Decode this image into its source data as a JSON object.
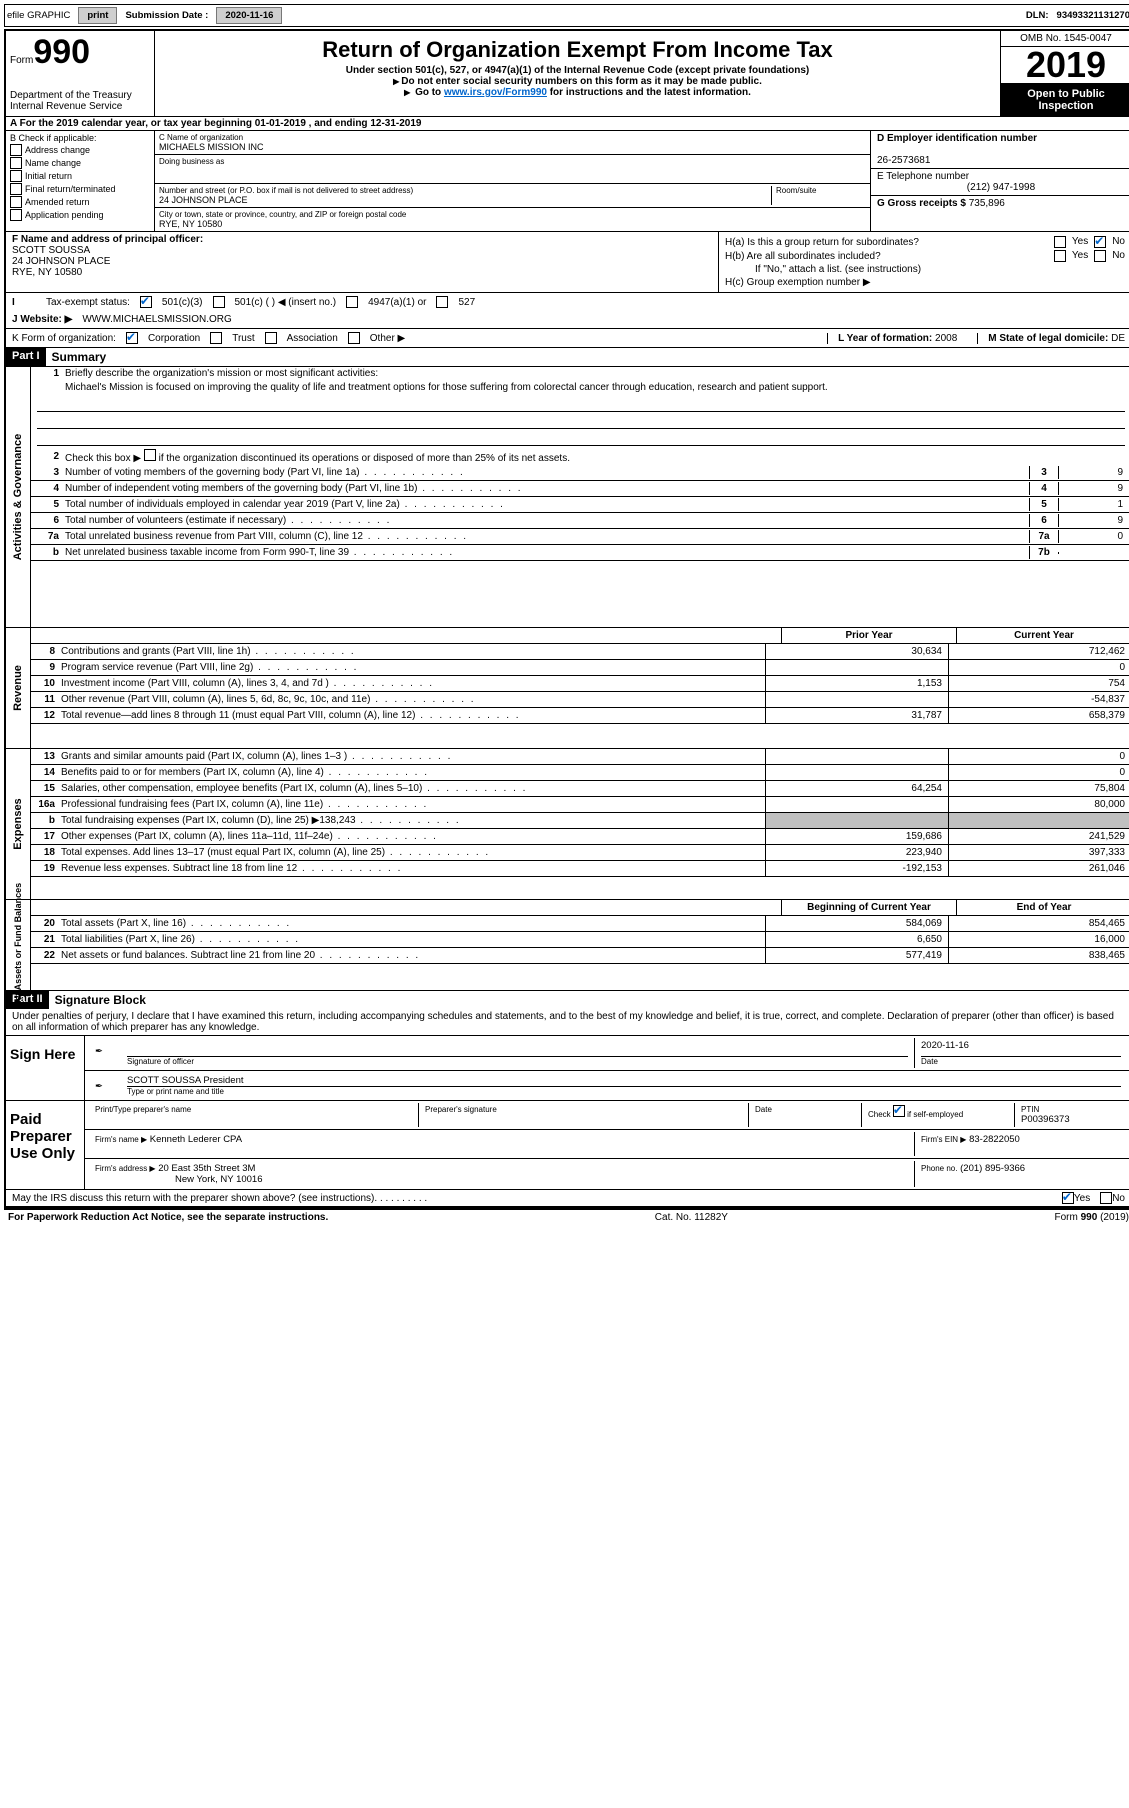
{
  "topbar": {
    "efile": "efile GRAPHIC",
    "print": "print",
    "submission_label": "Submission Date :",
    "submission_date": "2020-11-16",
    "dln_label": "DLN:",
    "dln": "93493321131270"
  },
  "header": {
    "form_word": "Form",
    "form_num": "990",
    "dept1": "Department of the Treasury",
    "dept2": "Internal Revenue Service",
    "title": "Return of Organization Exempt From Income Tax",
    "sub": "Under section 501(c), 527, or 4947(a)(1) of the Internal Revenue Code (except private foundations)",
    "note1": "Do not enter social security numbers on this form as it may be made public.",
    "note2_pre": "Go to ",
    "note2_link": "www.irs.gov/Form990",
    "note2_post": " for instructions and the latest information.",
    "omb": "OMB No. 1545-0047",
    "year": "2019",
    "inspection1": "Open to Public",
    "inspection2": "Inspection"
  },
  "rowA": "A For the 2019 calendar year, or tax year beginning 01-01-2019     , and ending 12-31-2019",
  "colB": {
    "header": "B Check if applicable:",
    "opts": [
      "Address change",
      "Name change",
      "Initial return",
      "Final return/terminated",
      "Amended return",
      "Application pending"
    ]
  },
  "colC": {
    "name_lbl": "C Name of organization",
    "name": "MICHAELS MISSION INC",
    "dba_lbl": "Doing business as",
    "dba": "",
    "addr_lbl": "Number and street (or P.O. box if mail is not delivered to street address)",
    "room_lbl": "Room/suite",
    "addr": "24 JOHNSON PLACE",
    "city_lbl": "City or town, state or province, country, and ZIP or foreign postal code",
    "city": "RYE, NY  10580"
  },
  "colDE": {
    "d_lbl": "D Employer identification number",
    "ein": "26-2573681",
    "e_lbl": "E Telephone number",
    "phone": "(212) 947-1998",
    "g_lbl": "G Gross receipts $",
    "g_val": "735,896"
  },
  "rowF": {
    "lbl": "F Name and address of principal officer:",
    "name": "SCOTT SOUSSA",
    "addr1": "24 JOHNSON PLACE",
    "addr2": "RYE, NY  10580"
  },
  "rowH": {
    "ha": "H(a)  Is this a group return for subordinates?",
    "hb": "H(b)  Are all subordinates included?",
    "hb_note": "If \"No,\" attach a list. (see instructions)",
    "hc": "H(c)  Group exemption number ▶",
    "yes": "Yes",
    "no": "No"
  },
  "rowI": {
    "lbl": "Tax-exempt status:",
    "o1": "501(c)(3)",
    "o2": "501(c) (  ) ◀ (insert no.)",
    "o3": "4947(a)(1) or",
    "o4": "527"
  },
  "rowJ": {
    "lbl": "J   Website: ▶",
    "val": "WWW.MICHAELSMISSION.ORG"
  },
  "rowK": {
    "lbl": "K Form of organization:",
    "o1": "Corporation",
    "o2": "Trust",
    "o3": "Association",
    "o4": "Other ▶",
    "l_lbl": "L Year of formation:",
    "l_val": "2008",
    "m_lbl": "M State of legal domicile:",
    "m_val": "DE"
  },
  "part1": {
    "part": "Part I",
    "title": "Summary",
    "l1_lbl": "Briefly describe the organization's mission or most significant activities:",
    "l1_text": "Michael's Mission is focused on improving the quality of life and treatment options for those suffering from colorectal cancer through education, research and patient support.",
    "l2": "Check this box ▶        if the organization discontinued its operations or disposed of more than 25% of its net assets.",
    "lines_gov": [
      {
        "n": "3",
        "d": "Number of voting members of the governing body (Part VI, line 1a)",
        "box": "3",
        "v": "9"
      },
      {
        "n": "4",
        "d": "Number of independent voting members of the governing body (Part VI, line 1b)",
        "box": "4",
        "v": "9"
      },
      {
        "n": "5",
        "d": "Total number of individuals employed in calendar year 2019 (Part V, line 2a)",
        "box": "5",
        "v": "1"
      },
      {
        "n": "6",
        "d": "Total number of volunteers (estimate if necessary)",
        "box": "6",
        "v": "9"
      },
      {
        "n": "7a",
        "d": "Total unrelated business revenue from Part VIII, column (C), line 12",
        "box": "7a",
        "v": "0"
      },
      {
        "n": "b",
        "d": "Net unrelated business taxable income from Form 990-T, line 39",
        "box": "7b",
        "v": ""
      }
    ],
    "col_prior": "Prior Year",
    "col_current": "Current Year",
    "rev": [
      {
        "n": "8",
        "d": "Contributions and grants (Part VIII, line 1h)",
        "p": "30,634",
        "c": "712,462"
      },
      {
        "n": "9",
        "d": "Program service revenue (Part VIII, line 2g)",
        "p": "",
        "c": "0"
      },
      {
        "n": "10",
        "d": "Investment income (Part VIII, column (A), lines 3, 4, and 7d )",
        "p": "1,153",
        "c": "754"
      },
      {
        "n": "11",
        "d": "Other revenue (Part VIII, column (A), lines 5, 6d, 8c, 9c, 10c, and 11e)",
        "p": "",
        "c": "-54,837"
      },
      {
        "n": "12",
        "d": "Total revenue—add lines 8 through 11 (must equal Part VIII, column (A), line 12)",
        "p": "31,787",
        "c": "658,379"
      }
    ],
    "exp": [
      {
        "n": "13",
        "d": "Grants and similar amounts paid (Part IX, column (A), lines 1–3 )",
        "p": "",
        "c": "0"
      },
      {
        "n": "14",
        "d": "Benefits paid to or for members (Part IX, column (A), line 4)",
        "p": "",
        "c": "0"
      },
      {
        "n": "15",
        "d": "Salaries, other compensation, employee benefits (Part IX, column (A), lines 5–10)",
        "p": "64,254",
        "c": "75,804"
      },
      {
        "n": "16a",
        "d": "Professional fundraising fees (Part IX, column (A), line 11e)",
        "p": "",
        "c": "80,000"
      },
      {
        "n": "b",
        "d": "Total fundraising expenses (Part IX, column (D), line 25) ▶138,243",
        "p": "grey",
        "c": "grey"
      },
      {
        "n": "17",
        "d": "Other expenses (Part IX, column (A), lines 11a–11d, 11f–24e)",
        "p": "159,686",
        "c": "241,529"
      },
      {
        "n": "18",
        "d": "Total expenses. Add lines 13–17 (must equal Part IX, column (A), line 25)",
        "p": "223,940",
        "c": "397,333"
      },
      {
        "n": "19",
        "d": "Revenue less expenses. Subtract line 18 from line 12",
        "p": "-192,153",
        "c": "261,046"
      }
    ],
    "col_begin": "Beginning of Current Year",
    "col_end": "End of Year",
    "net": [
      {
        "n": "20",
        "d": "Total assets (Part X, line 16)",
        "p": "584,069",
        "c": "854,465"
      },
      {
        "n": "21",
        "d": "Total liabilities (Part X, line 26)",
        "p": "6,650",
        "c": "16,000"
      },
      {
        "n": "22",
        "d": "Net assets or fund balances. Subtract line 21 from line 20",
        "p": "577,419",
        "c": "838,465"
      }
    ],
    "side_gov": "Activities & Governance",
    "side_rev": "Revenue",
    "side_exp": "Expenses",
    "side_net": "Net Assets or Fund Balances"
  },
  "part2": {
    "part": "Part II",
    "title": "Signature Block",
    "penalty": "Under penalties of perjury, I declare that I have examined this return, including accompanying schedules and statements, and to the best of my knowledge and belief, it is true, correct, and complete. Declaration of preparer (other than officer) is based on all information of which preparer has any knowledge."
  },
  "sign": {
    "here": "Sign Here",
    "sig_officer_lbl": "Signature of officer",
    "date_lbl": "Date",
    "date": "2020-11-16",
    "name": "SCOTT SOUSSA President",
    "name_lbl": "Type or print name and title"
  },
  "preparer": {
    "here": "Paid Preparer Use Only",
    "print_lbl": "Print/Type preparer's name",
    "sig_lbl": "Preparer's signature",
    "date_lbl": "Date",
    "check_lbl": "Check          if self-employed",
    "ptin_lbl": "PTIN",
    "ptin": "P00396373",
    "firm_name_lbl": "Firm's name     ▶",
    "firm_name": "Kenneth Lederer CPA",
    "firm_ein_lbl": "Firm's EIN ▶",
    "firm_ein": "83-2822050",
    "firm_addr_lbl": "Firm's address ▶",
    "firm_addr1": "20 East 35th Street 3M",
    "firm_addr2": "New York, NY  10016",
    "phone_lbl": "Phone no.",
    "phone": "(201) 895-9366"
  },
  "discuss": {
    "q": "May the IRS discuss this return with the preparer shown above? (see instructions)",
    "yes": "Yes",
    "no": "No"
  },
  "footer": {
    "left": "For Paperwork Reduction Act Notice, see the separate instructions.",
    "mid": "Cat. No. 11282Y",
    "right": "Form 990 (2019)"
  }
}
